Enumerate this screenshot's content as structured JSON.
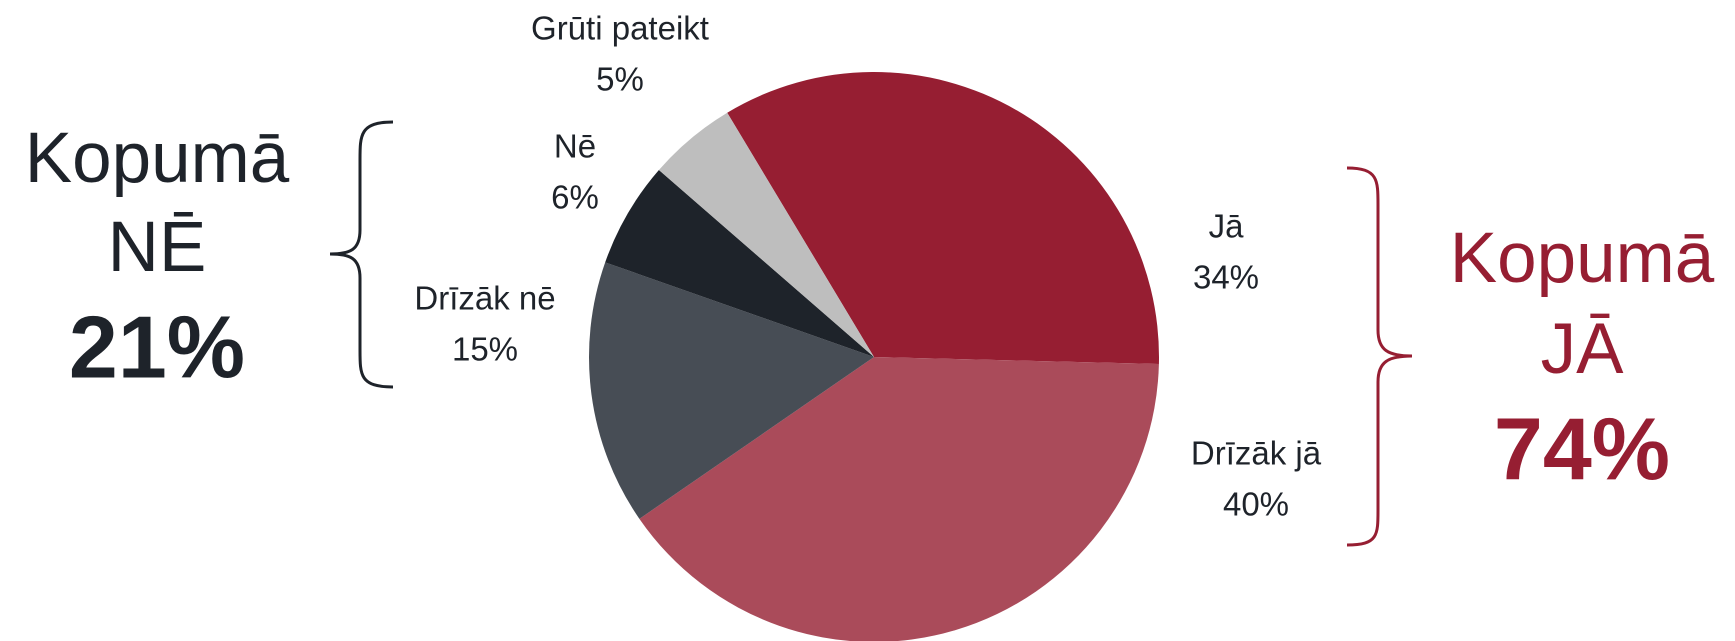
{
  "chart_data": {
    "type": "pie",
    "categories": [
      "Jā",
      "Drīzāk jā",
      "Drīzāk nē",
      "Nē",
      "Grūti pateikt"
    ],
    "values": [
      34,
      40,
      15,
      6,
      5
    ],
    "value_labels": [
      "34%",
      "40%",
      "15%",
      "6%",
      "5%"
    ],
    "colors": [
      "#961e32",
      "#aa4b5a",
      "#474d55",
      "#1e232a",
      "#bebebe"
    ],
    "start_angle": -31,
    "annotations": [
      {
        "text": "Kopumā",
        "group": "NĒ",
        "value_label": "21%",
        "color": "#1e232a"
      },
      {
        "text": "Kopumā",
        "group": "JĀ",
        "value_label": "74%",
        "color": "#961e32"
      }
    ]
  }
}
